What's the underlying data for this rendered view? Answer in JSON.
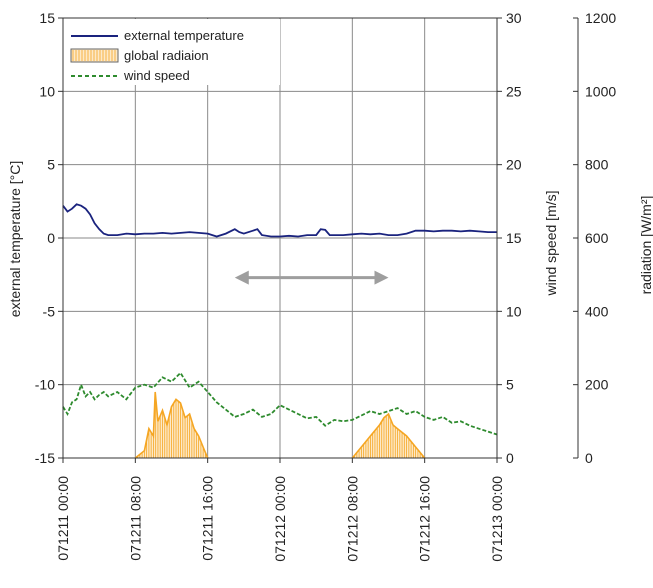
{
  "chart_data": {
    "type": "line",
    "title": "",
    "xlabel": "",
    "x_tick_labels": [
      "071211 00:00",
      "071211 08:00",
      "071211 16:00",
      "071212 00:00",
      "071212 08:00",
      "071212 16:00",
      "071213 00:00"
    ],
    "x_range_hours": [
      0,
      48
    ],
    "axes": {
      "left": {
        "label": "external temperature [°C]",
        "range": [
          -15,
          15
        ],
        "ticks": [
          15,
          10,
          5,
          0,
          -5,
          -10,
          -15
        ]
      },
      "right1": {
        "label": "wind speed [m/s]",
        "range": [
          0,
          30
        ],
        "ticks": [
          30,
          25,
          20,
          15,
          10,
          5,
          0
        ]
      },
      "right2": {
        "label": "radiation [W/m²]",
        "range": [
          0,
          1200
        ],
        "ticks": [
          1200,
          1000,
          800,
          600,
          400,
          200,
          0
        ]
      }
    },
    "grid": true,
    "legend_position": "top-left",
    "series": [
      {
        "name": "external temperature",
        "axis": "left",
        "style": "solid",
        "color": "#1a237e",
        "points": [
          [
            0,
            2.2
          ],
          [
            0.5,
            1.8
          ],
          [
            1,
            2.0
          ],
          [
            1.5,
            2.3
          ],
          [
            2,
            2.2
          ],
          [
            2.5,
            2.0
          ],
          [
            3,
            1.6
          ],
          [
            3.5,
            1.0
          ],
          [
            4,
            0.6
          ],
          [
            4.5,
            0.3
          ],
          [
            5,
            0.2
          ],
          [
            6,
            0.2
          ],
          [
            7,
            0.3
          ],
          [
            8,
            0.25
          ],
          [
            9,
            0.3
          ],
          [
            10,
            0.3
          ],
          [
            11,
            0.35
          ],
          [
            12,
            0.3
          ],
          [
            13,
            0.35
          ],
          [
            14,
            0.4
          ],
          [
            15,
            0.35
          ],
          [
            16,
            0.3
          ],
          [
            17,
            0.1
          ],
          [
            18,
            0.3
          ],
          [
            19,
            0.6
          ],
          [
            19.5,
            0.4
          ],
          [
            20,
            0.3
          ],
          [
            21,
            0.5
          ],
          [
            21.5,
            0.6
          ],
          [
            22,
            0.2
          ],
          [
            23,
            0.1
          ],
          [
            24,
            0.1
          ],
          [
            25,
            0.15
          ],
          [
            26,
            0.1
          ],
          [
            27,
            0.2
          ],
          [
            28,
            0.2
          ],
          [
            28.5,
            0.6
          ],
          [
            29,
            0.55
          ],
          [
            29.5,
            0.2
          ],
          [
            30,
            0.2
          ],
          [
            31,
            0.2
          ],
          [
            32,
            0.25
          ],
          [
            33,
            0.3
          ],
          [
            34,
            0.25
          ],
          [
            35,
            0.3
          ],
          [
            36,
            0.2
          ],
          [
            37,
            0.2
          ],
          [
            38,
            0.3
          ],
          [
            39,
            0.5
          ],
          [
            40,
            0.5
          ],
          [
            41,
            0.45
          ],
          [
            42,
            0.5
          ],
          [
            43,
            0.5
          ],
          [
            44,
            0.45
          ],
          [
            45,
            0.5
          ],
          [
            46,
            0.45
          ],
          [
            47,
            0.4
          ],
          [
            48,
            0.4
          ]
        ]
      },
      {
        "name": "global radiaion",
        "axis": "right2",
        "style": "hatched-area",
        "color": "#f5a623",
        "points": [
          [
            8,
            0
          ],
          [
            9,
            20
          ],
          [
            9.5,
            80
          ],
          [
            10,
            60
          ],
          [
            10.2,
            180
          ],
          [
            10.5,
            100
          ],
          [
            11,
            130
          ],
          [
            11.5,
            90
          ],
          [
            12,
            140
          ],
          [
            12.5,
            160
          ],
          [
            13,
            150
          ],
          [
            13.5,
            110
          ],
          [
            14,
            120
          ],
          [
            14.5,
            80
          ],
          [
            15,
            60
          ],
          [
            15.5,
            30
          ],
          [
            16,
            0
          ],
          [
            32,
            0
          ],
          [
            33,
            30
          ],
          [
            34,
            60
          ],
          [
            35,
            90
          ],
          [
            35.5,
            110
          ],
          [
            36,
            120
          ],
          [
            36.5,
            90
          ],
          [
            37,
            80
          ],
          [
            38,
            60
          ],
          [
            39,
            30
          ],
          [
            40,
            0
          ]
        ]
      },
      {
        "name": "wind speed",
        "axis": "right1",
        "style": "dashed",
        "color": "#2e8b2e",
        "points": [
          [
            0,
            3.5
          ],
          [
            0.5,
            3.0
          ],
          [
            1,
            3.8
          ],
          [
            1.5,
            4.0
          ],
          [
            2,
            5.0
          ],
          [
            2.5,
            4.2
          ],
          [
            3,
            4.5
          ],
          [
            3.5,
            4.0
          ],
          [
            4,
            4.3
          ],
          [
            4.5,
            4.5
          ],
          [
            5,
            4.2
          ],
          [
            6,
            4.5
          ],
          [
            7,
            4.0
          ],
          [
            8,
            4.8
          ],
          [
            9,
            5.0
          ],
          [
            10,
            4.8
          ],
          [
            11,
            5.5
          ],
          [
            12,
            5.2
          ],
          [
            13,
            5.8
          ],
          [
            14,
            4.8
          ],
          [
            15,
            5.2
          ],
          [
            16,
            4.5
          ],
          [
            17,
            3.8
          ],
          [
            18,
            3.3
          ],
          [
            19,
            2.8
          ],
          [
            20,
            3.0
          ],
          [
            21,
            3.3
          ],
          [
            22,
            2.8
          ],
          [
            23,
            3.0
          ],
          [
            24,
            3.6
          ],
          [
            25,
            3.3
          ],
          [
            26,
            3.0
          ],
          [
            27,
            2.7
          ],
          [
            28,
            2.8
          ],
          [
            29,
            2.2
          ],
          [
            30,
            2.6
          ],
          [
            31,
            2.5
          ],
          [
            32,
            2.6
          ],
          [
            33,
            2.9
          ],
          [
            34,
            3.2
          ],
          [
            35,
            3.0
          ],
          [
            36,
            3.2
          ],
          [
            37,
            3.4
          ],
          [
            38,
            3.0
          ],
          [
            39,
            3.2
          ],
          [
            40,
            2.8
          ],
          [
            41,
            2.6
          ],
          [
            42,
            2.8
          ],
          [
            43,
            2.4
          ],
          [
            44,
            2.5
          ],
          [
            45,
            2.2
          ],
          [
            46,
            2.0
          ],
          [
            47,
            1.8
          ],
          [
            48,
            1.6
          ]
        ]
      }
    ],
    "annotation": {
      "type": "double-arrow",
      "x_range_hours": [
        19,
        36
      ],
      "y_temperature": -2.7,
      "color": "#9e9e9e"
    }
  }
}
